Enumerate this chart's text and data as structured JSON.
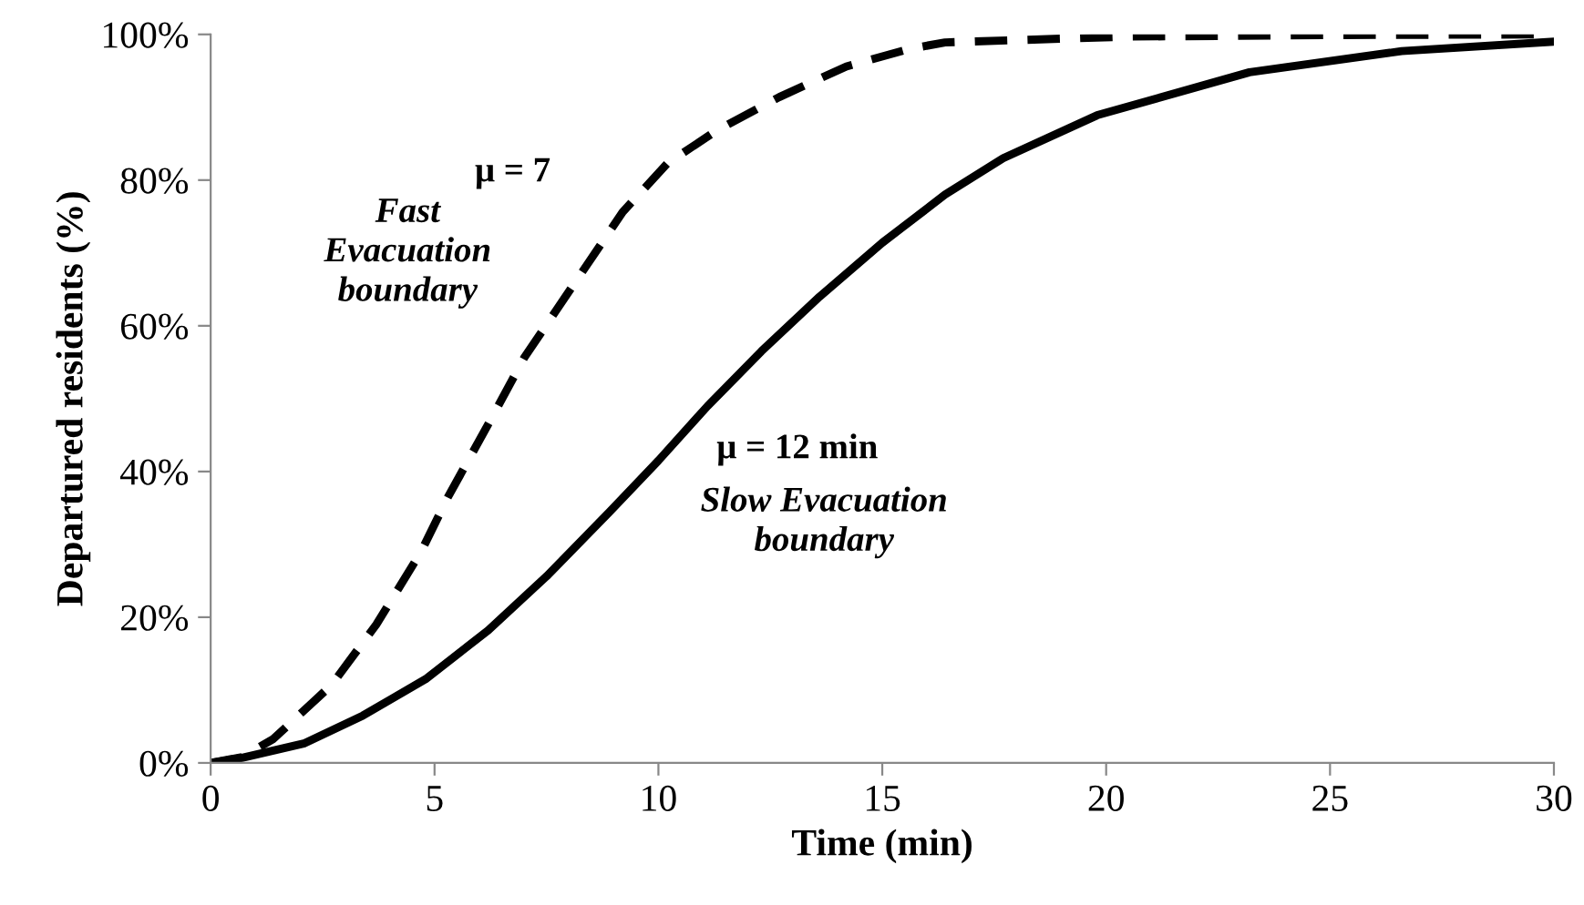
{
  "chart_data": {
    "type": "line",
    "xlabel": "Time (min)",
    "ylabel": "Departured residents (%)",
    "xlim": [
      0,
      30
    ],
    "xticks": [
      0,
      5,
      10,
      15,
      20,
      25,
      30
    ],
    "ylim": [
      0,
      100
    ],
    "yticks": [
      {
        "value": 0,
        "label": "0%"
      },
      {
        "value": 20,
        "label": "20%"
      },
      {
        "value": 40,
        "label": "40%"
      },
      {
        "value": 60,
        "label": "60%"
      },
      {
        "value": 80,
        "label": "80%"
      },
      {
        "value": 100,
        "label": "100%"
      }
    ],
    "grid": false,
    "legend": false,
    "marker": "none",
    "series": [
      {
        "color": "#000000",
        "line_style": "dashed",
        "x": [
          0,
          0.7,
          1.4,
          2.7,
          3.7,
          4.7,
          5.3,
          6.2,
          7.0,
          8.1,
          9.2,
          10.2,
          11.3,
          12.7,
          14.2,
          15.6,
          16.4,
          20.5,
          25,
          30
        ],
        "values": [
          0,
          0.8,
          3.3,
          10.7,
          19,
          29,
          36.5,
          46.5,
          55.6,
          65.6,
          75.6,
          82.3,
          86.8,
          91.4,
          95.6,
          98,
          98.9,
          99.7,
          99.9,
          100
        ]
      },
      {
        "color": "#000000",
        "line_style": "solid",
        "x": [
          0,
          0.7,
          2.1,
          3.4,
          4.8,
          6.2,
          7.5,
          8.9,
          10,
          11.1,
          12.3,
          13.6,
          15,
          16.4,
          17.7,
          19.8,
          23.2,
          26.6,
          30
        ],
        "values": [
          0,
          0.7,
          2.7,
          6.5,
          11.5,
          18.2,
          25.6,
          34.4,
          41.5,
          49,
          56.5,
          64,
          71.4,
          78,
          83,
          88.9,
          94.8,
          97.7,
          99
        ]
      }
    ],
    "annotations": [
      "μ = 7",
      "Fast\nEvacuation\nboundary",
      "μ = 12 min",
      "Slow Evacuation\nboundary"
    ]
  }
}
